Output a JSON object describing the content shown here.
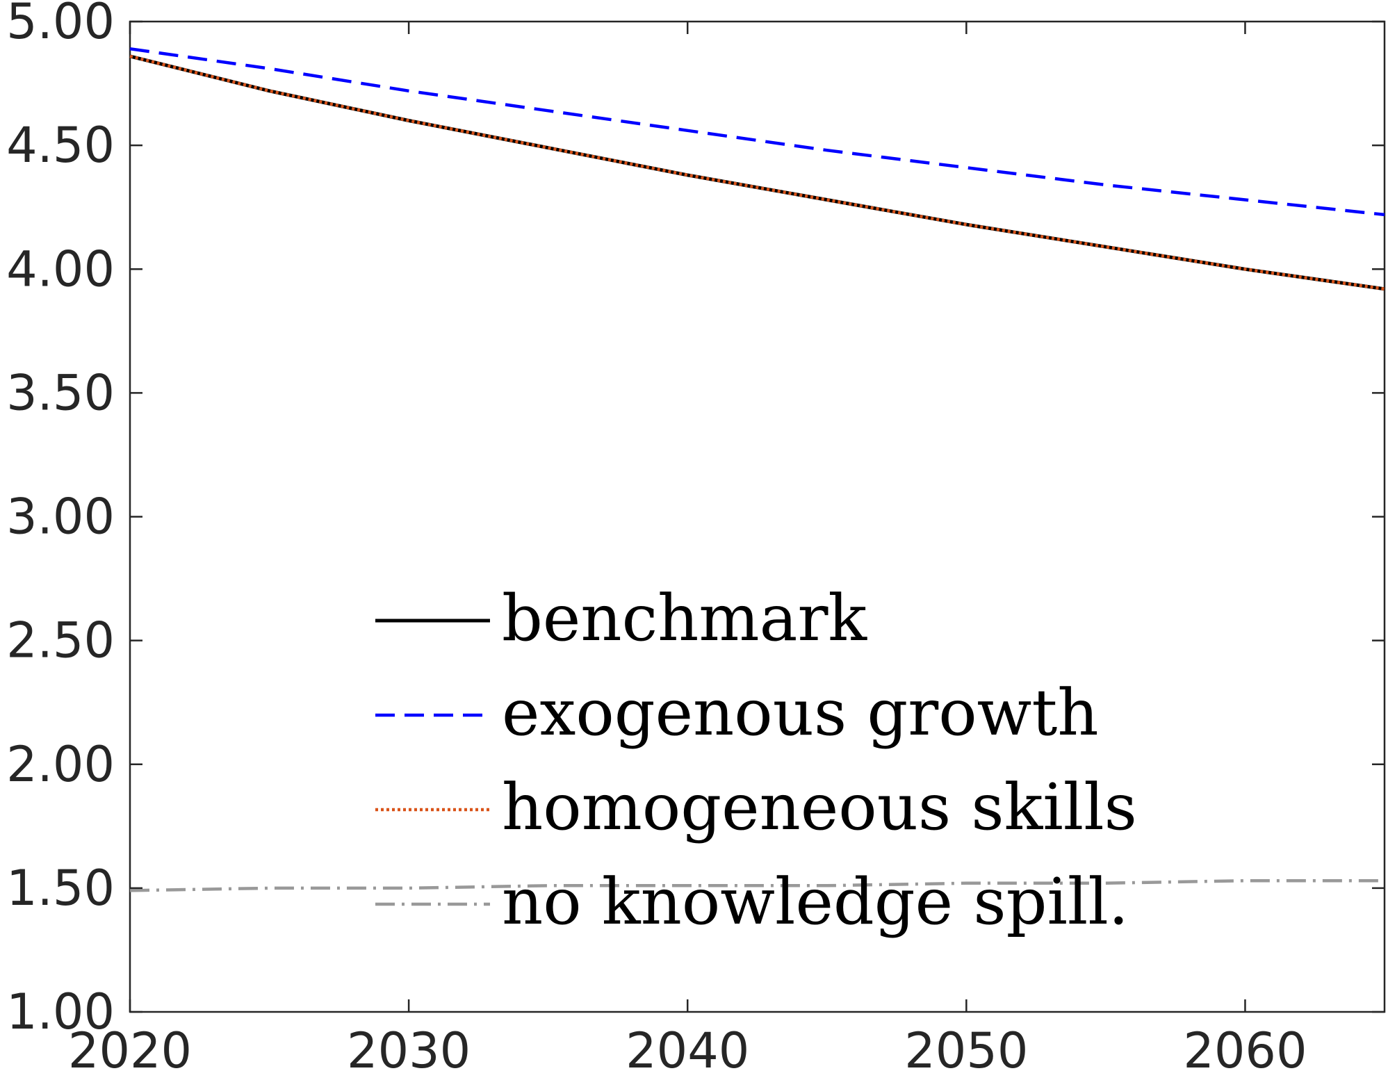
{
  "chart_data": {
    "type": "line",
    "title": "",
    "xlabel": "",
    "ylabel": "",
    "xlim": [
      2020,
      2065
    ],
    "ylim": [
      1.0,
      5.0
    ],
    "xticks": [
      "2020",
      "2030",
      "2040",
      "2050",
      "2060"
    ],
    "yticks": [
      "1.00",
      "1.50",
      "2.00",
      "2.50",
      "3.00",
      "3.50",
      "4.00",
      "4.50",
      "5.00"
    ],
    "legend_position": "lower-center",
    "grid": false,
    "x": [
      2020,
      2025,
      2030,
      2035,
      2040,
      2045,
      2050,
      2055,
      2060,
      2065
    ],
    "series": [
      {
        "name": "benchmark",
        "color": "#000000",
        "style": "solid",
        "values": [
          4.86,
          4.72,
          4.6,
          4.49,
          4.38,
          4.28,
          4.18,
          4.09,
          4.0,
          3.92
        ]
      },
      {
        "name": "exogenous growth",
        "color": "#0000ff",
        "style": "dashed",
        "values": [
          4.89,
          4.81,
          4.72,
          4.64,
          4.56,
          4.48,
          4.41,
          4.34,
          4.28,
          4.22
        ]
      },
      {
        "name": "homogeneous skills",
        "color": "#d95319",
        "style": "dotted",
        "values": [
          4.86,
          4.72,
          4.6,
          4.49,
          4.38,
          4.28,
          4.18,
          4.09,
          4.0,
          3.92
        ]
      },
      {
        "name": "no knowledge spill.",
        "color": "#999999",
        "style": "dashdot",
        "values": [
          1.49,
          1.5,
          1.5,
          1.51,
          1.51,
          1.51,
          1.52,
          1.52,
          1.53,
          1.53
        ]
      }
    ]
  }
}
